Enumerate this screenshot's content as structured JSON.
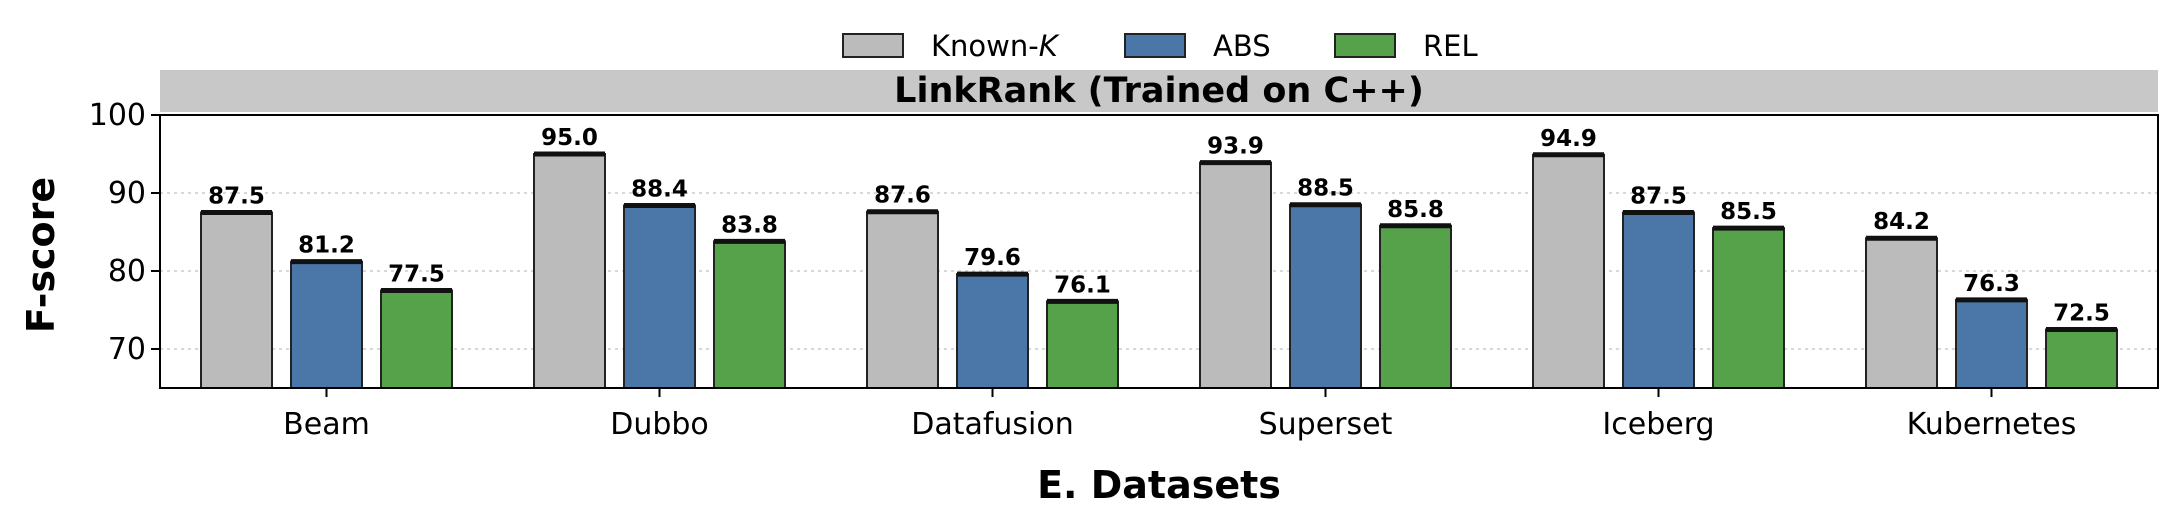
{
  "chart_data": {
    "type": "bar",
    "title": "LinkRank (Trained on C++)",
    "xlabel": "E. Datasets",
    "ylabel": "F-score",
    "ylim": [
      65,
      100
    ],
    "yticks": [
      70,
      80,
      90,
      100
    ],
    "grid": true,
    "legend_position": "top-center",
    "categories": [
      "Beam",
      "Dubbo",
      "Datafusion",
      "Superset",
      "Iceberg",
      "Kubernetes"
    ],
    "series": [
      {
        "name": "Known-K",
        "color": "#bbbbbb",
        "values": [
          87.5,
          95.0,
          87.6,
          93.9,
          94.9,
          84.2
        ]
      },
      {
        "name": "ABS",
        "color": "#4a76a8",
        "values": [
          81.2,
          88.4,
          79.6,
          88.5,
          87.5,
          76.3
        ]
      },
      {
        "name": "REL",
        "color": "#55a24a",
        "values": [
          77.5,
          83.8,
          76.1,
          85.8,
          85.5,
          72.5
        ]
      }
    ]
  }
}
